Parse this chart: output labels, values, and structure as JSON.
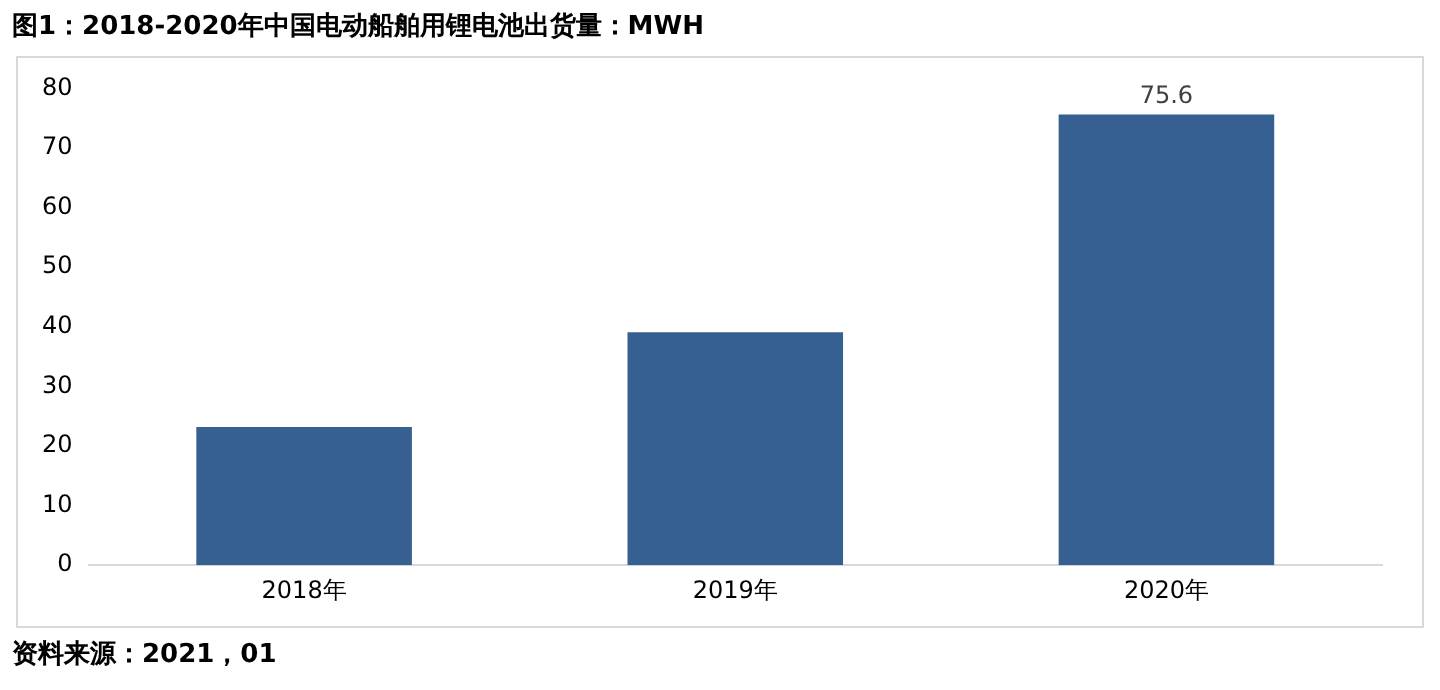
{
  "chart_data": {
    "type": "bar",
    "title": "图1：2018-2020年中国电动船舶用锂电池出货量：MWH",
    "categories": [
      "2018年",
      "2019年",
      "2020年"
    ],
    "values": [
      23.2,
      39.1,
      75.6
    ],
    "value_labels": [
      null,
      null,
      "75.6"
    ],
    "color": "#376092",
    "ylim": [
      0,
      80
    ],
    "yticks": [
      0,
      10,
      20,
      30,
      40,
      50,
      60,
      70,
      80
    ],
    "grid": false,
    "legend": false,
    "annotations": [
      "资料来源：2021，01"
    ]
  }
}
